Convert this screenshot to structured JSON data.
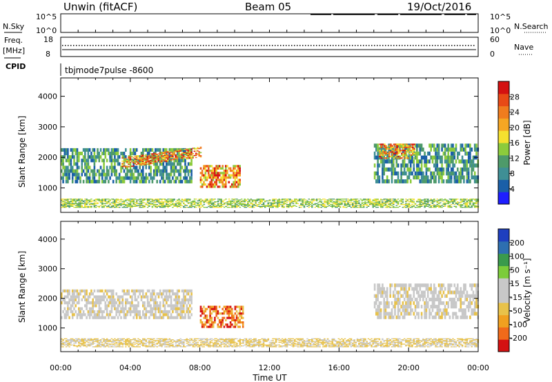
{
  "header": {
    "site": "Unwin (fitACF)",
    "beam": "Beam 05",
    "date": "19/Oct/2016"
  },
  "panels": {
    "nsky_label": "N.Sky",
    "nsearch_label": "N.Search",
    "nsky_ticks": [
      "10^5",
      "10^0"
    ],
    "nsearch_ticks": [
      "10^5",
      "10^0"
    ],
    "freq_label_1": "Freq.",
    "freq_label_2": "[MHz]",
    "freq_ticks": [
      "18",
      "8"
    ],
    "nave_label": "Nave",
    "nave_ticks": [
      "60",
      "0"
    ],
    "cpid_label": "CPID",
    "cpid_value": "tbjmode7pulse -8600"
  },
  "colors": {
    "power_scale": [
      "#1e1eff",
      "#1a5fa8",
      "#3f8f95",
      "#4e9a6a",
      "#8ccb3c",
      "#f5e12f",
      "#f5a623",
      "#f07c1e",
      "#e84a16",
      "#d41111"
    ],
    "velocity_scale": [
      "#1f3fbf",
      "#2e6fb0",
      "#3a9a4c",
      "#7ccc3a",
      "#c8c8c8",
      "#c8c8c8",
      "#e8c24a",
      "#f0a020",
      "#f06a1a",
      "#d41111"
    ]
  },
  "chart_data": [
    {
      "type": "heatmap",
      "title": "Power",
      "ylabel": "Slant Range [km]",
      "xlabel": "Time UT",
      "ylim": [
        200,
        4600
      ],
      "y_ticks": [
        "1000",
        "2000",
        "3000",
        "4000"
      ],
      "x_ticks": [
        "00:00",
        "04:00",
        "08:00",
        "12:00",
        "16:00",
        "20:00",
        "00:00"
      ],
      "colorbar": {
        "label": "Power [dB]",
        "range": [
          0,
          32
        ],
        "ticks": [
          "4",
          "8",
          "12",
          "16",
          "20",
          "24",
          "28"
        ]
      },
      "features": [
        {
          "t_start": 0.0,
          "t_end": 7.5,
          "range_start": 1150,
          "range_end": 2300,
          "level": "mid"
        },
        {
          "t_start": 3.5,
          "t_end": 8.0,
          "range_start": 1650,
          "range_end": 2350,
          "level": "high"
        },
        {
          "t_start": 8.0,
          "t_end": 10.3,
          "range_start": 1000,
          "range_end": 1750,
          "level": "high"
        },
        {
          "t_start": 18.0,
          "t_end": 24.0,
          "range_start": 1150,
          "range_end": 2450,
          "level": "mid"
        },
        {
          "t_start": 18.3,
          "t_end": 20.3,
          "range_start": 1950,
          "range_end": 2450,
          "level": "high"
        },
        {
          "t_start": 0.0,
          "t_end": 24.0,
          "range_start": 350,
          "range_end": 650,
          "level": "low"
        }
      ]
    },
    {
      "type": "heatmap",
      "title": "Velocity",
      "ylabel": "Slant Range [km]",
      "xlabel": "Time UT",
      "ylim": [
        200,
        4600
      ],
      "y_ticks": [
        "1000",
        "2000",
        "3000",
        "4000"
      ],
      "x_ticks": [
        "00:00",
        "04:00",
        "08:00",
        "12:00",
        "16:00",
        "20:00",
        "00:00"
      ],
      "colorbar": {
        "label": "Velocity [m s⁻¹]",
        "range": [
          -250,
          250
        ],
        "ticks": [
          "200",
          "100",
          "50",
          "15",
          "-15",
          "-50",
          "-100",
          "-200"
        ]
      },
      "features": [
        {
          "t_start": 0.0,
          "t_end": 7.5,
          "range_start": 1300,
          "range_end": 2300,
          "level": "near-zero"
        },
        {
          "t_start": 8.0,
          "t_end": 10.5,
          "range_start": 1000,
          "range_end": 1750,
          "level": "negative"
        },
        {
          "t_start": 18.0,
          "t_end": 24.0,
          "range_start": 1300,
          "range_end": 2500,
          "level": "near-zero"
        },
        {
          "t_start": 0.0,
          "t_end": 24.0,
          "range_start": 350,
          "range_end": 650,
          "level": "slightly-negative"
        }
      ]
    }
  ]
}
